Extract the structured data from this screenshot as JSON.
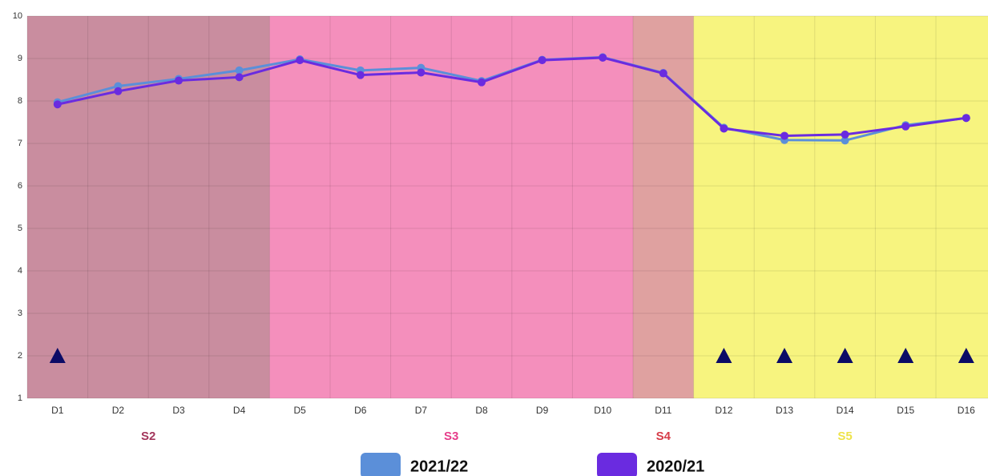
{
  "chart_data": {
    "type": "line",
    "categories": [
      "D1",
      "D2",
      "D3",
      "D4",
      "D5",
      "D6",
      "D7",
      "D8",
      "D9",
      "D10",
      "D11",
      "D12",
      "D13",
      "D14",
      "D15",
      "D16"
    ],
    "series": [
      {
        "name": "2021/22",
        "color": "#5b8fd9",
        "values": [
          7.97,
          8.35,
          8.52,
          8.72,
          8.98,
          8.72,
          8.78,
          8.47,
          8.97,
          9.03,
          8.66,
          7.37,
          7.08,
          7.07,
          7.43,
          7.6
        ]
      },
      {
        "name": "2020/21",
        "color": "#6a2be0",
        "values": [
          7.92,
          8.23,
          8.48,
          8.56,
          8.96,
          8.61,
          8.67,
          8.44,
          8.96,
          9.02,
          8.65,
          7.35,
          7.18,
          7.21,
          7.4,
          7.6
        ]
      }
    ],
    "triangles": {
      "color": "#0b0b66",
      "values": [
        2,
        null,
        null,
        null,
        null,
        null,
        null,
        null,
        null,
        null,
        null,
        2,
        2,
        2,
        2,
        2
      ]
    },
    "regions": [
      {
        "label": "S2",
        "start": 0,
        "end": 3,
        "color": "#c98d9f",
        "label_color": "#a3365c"
      },
      {
        "label": "S3",
        "start": 4,
        "end": 9,
        "color": "#f48fbc",
        "label_color": "#e63d8a"
      },
      {
        "label": "S4",
        "start": 10,
        "end": 10,
        "color": "#dfa1a0",
        "label_color": "#d63c48"
      },
      {
        "label": "S5",
        "start": 11,
        "end": 15,
        "color": "#f7f47f",
        "label_color": "#eee34a"
      }
    ],
    "ylim": [
      1,
      10
    ],
    "yticks": [
      1,
      2,
      3,
      4,
      5,
      6,
      7,
      8,
      9,
      10
    ],
    "grid": true
  }
}
